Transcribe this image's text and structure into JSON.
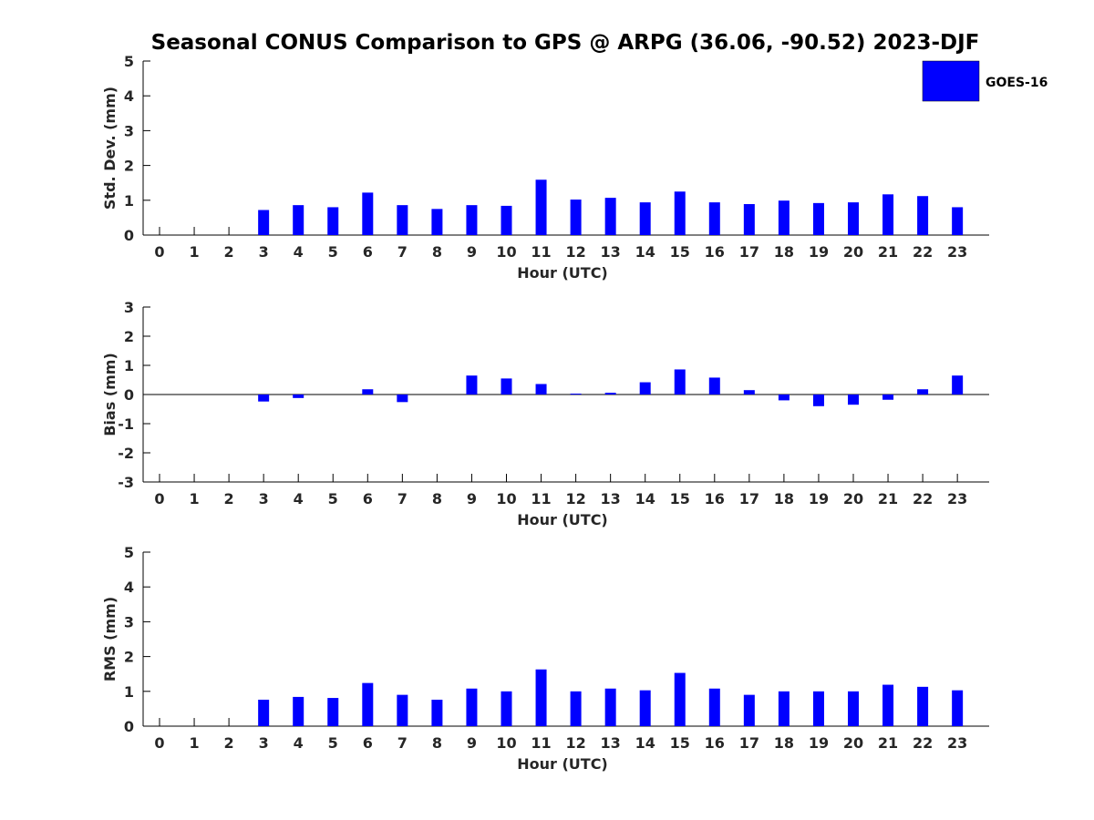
{
  "title": "Seasonal CONUS Comparison to GPS @ ARPG (36.06, -90.52) 2023-DJF",
  "legend": {
    "label": "GOES-16",
    "color": "#0000ff",
    "position": "top-right"
  },
  "chart_data": [
    {
      "type": "bar",
      "title": "",
      "xlabel": "Hour (UTC)",
      "ylabel": "Std. Dev. (mm)",
      "categories": [
        "0",
        "1",
        "2",
        "3",
        "4",
        "5",
        "6",
        "7",
        "8",
        "9",
        "10",
        "11",
        "12",
        "13",
        "14",
        "15",
        "16",
        "17",
        "18",
        "19",
        "20",
        "21",
        "22",
        "23"
      ],
      "ylim": [
        0,
        5
      ],
      "yticks": [
        "0",
        "1",
        "2",
        "3",
        "4",
        "5"
      ],
      "grid": false,
      "series": [
        {
          "name": "GOES-16",
          "color": "#0000ff",
          "values": [
            null,
            null,
            null,
            0.72,
            0.86,
            0.8,
            1.22,
            0.86,
            0.75,
            0.86,
            0.84,
            1.59,
            1.02,
            1.07,
            0.94,
            1.25,
            0.94,
            0.89,
            0.99,
            0.92,
            0.94,
            1.17,
            1.12,
            0.8
          ]
        }
      ]
    },
    {
      "type": "bar",
      "title": "",
      "xlabel": "Hour (UTC)",
      "ylabel": "Bias (mm)",
      "categories": [
        "0",
        "1",
        "2",
        "3",
        "4",
        "5",
        "6",
        "7",
        "8",
        "9",
        "10",
        "11",
        "12",
        "13",
        "14",
        "15",
        "16",
        "17",
        "18",
        "19",
        "20",
        "21",
        "22",
        "23"
      ],
      "ylim": [
        -3,
        3
      ],
      "yticks": [
        "-3",
        "-2",
        "-1",
        "0",
        "1",
        "2",
        "3"
      ],
      "grid": false,
      "series": [
        {
          "name": "GOES-16",
          "color": "#0000ff",
          "values": [
            null,
            null,
            null,
            -0.24,
            -0.12,
            0.0,
            0.18,
            -0.26,
            0.0,
            0.65,
            0.55,
            0.36,
            0.03,
            0.06,
            0.42,
            0.86,
            0.58,
            0.15,
            -0.2,
            -0.4,
            -0.35,
            -0.18,
            0.18,
            0.65
          ]
        }
      ]
    },
    {
      "type": "bar",
      "title": "",
      "xlabel": "Hour (UTC)",
      "ylabel": "RMS (mm)",
      "categories": [
        "0",
        "1",
        "2",
        "3",
        "4",
        "5",
        "6",
        "7",
        "8",
        "9",
        "10",
        "11",
        "12",
        "13",
        "14",
        "15",
        "16",
        "17",
        "18",
        "19",
        "20",
        "21",
        "22",
        "23"
      ],
      "ylim": [
        0,
        5
      ],
      "yticks": [
        "0",
        "1",
        "2",
        "3",
        "4",
        "5"
      ],
      "grid": false,
      "series": [
        {
          "name": "GOES-16",
          "color": "#0000ff",
          "values": [
            null,
            null,
            null,
            0.76,
            0.84,
            0.81,
            1.24,
            0.9,
            0.76,
            1.08,
            1.0,
            1.63,
            1.0,
            1.08,
            1.03,
            1.53,
            1.08,
            0.9,
            1.0,
            1.0,
            1.0,
            1.19,
            1.13,
            1.03
          ]
        }
      ]
    }
  ]
}
